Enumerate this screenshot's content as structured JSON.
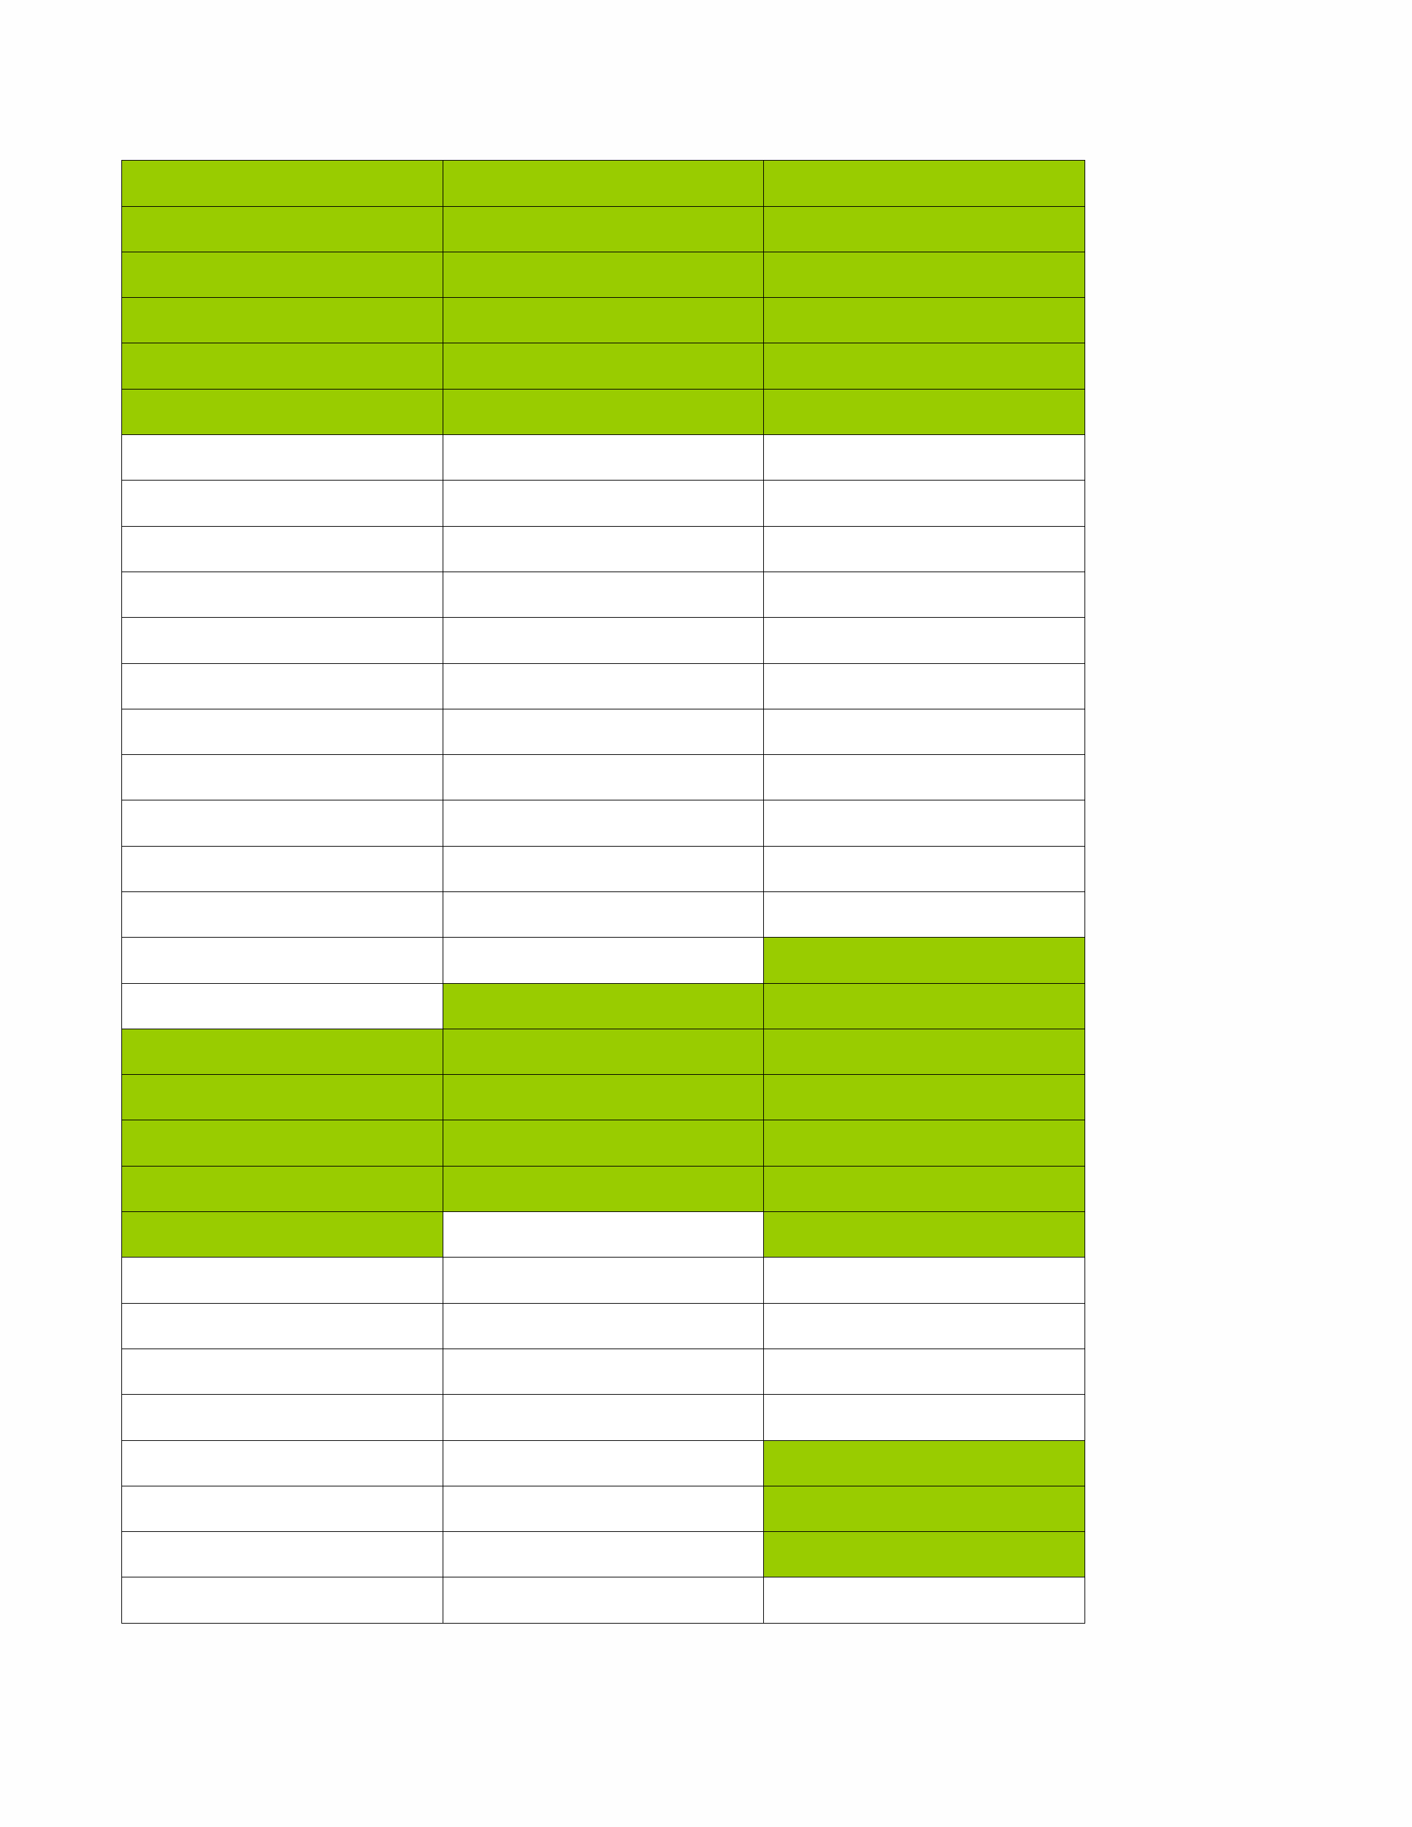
{
  "colors": {
    "filled": "#99cc00",
    "empty": "#ffffff",
    "border": "#000000"
  },
  "grid": {
    "columns": 3,
    "rows": [
      [
        1,
        1,
        1
      ],
      [
        1,
        1,
        1
      ],
      [
        1,
        1,
        1
      ],
      [
        1,
        1,
        1
      ],
      [
        1,
        1,
        1
      ],
      [
        1,
        1,
        1
      ],
      [
        0,
        0,
        0
      ],
      [
        0,
        0,
        0
      ],
      [
        0,
        0,
        0
      ],
      [
        0,
        0,
        0
      ],
      [
        0,
        0,
        0
      ],
      [
        0,
        0,
        0
      ],
      [
        0,
        0,
        0
      ],
      [
        0,
        0,
        0
      ],
      [
        0,
        0,
        0
      ],
      [
        0,
        0,
        0
      ],
      [
        0,
        0,
        0
      ],
      [
        0,
        0,
        1
      ],
      [
        0,
        1,
        1
      ],
      [
        1,
        1,
        1
      ],
      [
        1,
        1,
        1
      ],
      [
        1,
        1,
        1
      ],
      [
        1,
        1,
        1
      ],
      [
        1,
        0,
        1
      ],
      [
        0,
        0,
        0
      ],
      [
        0,
        0,
        0
      ],
      [
        0,
        0,
        0
      ],
      [
        0,
        0,
        0
      ],
      [
        0,
        0,
        1
      ],
      [
        0,
        0,
        1
      ],
      [
        0,
        0,
        1
      ],
      [
        0,
        0,
        0
      ]
    ]
  }
}
